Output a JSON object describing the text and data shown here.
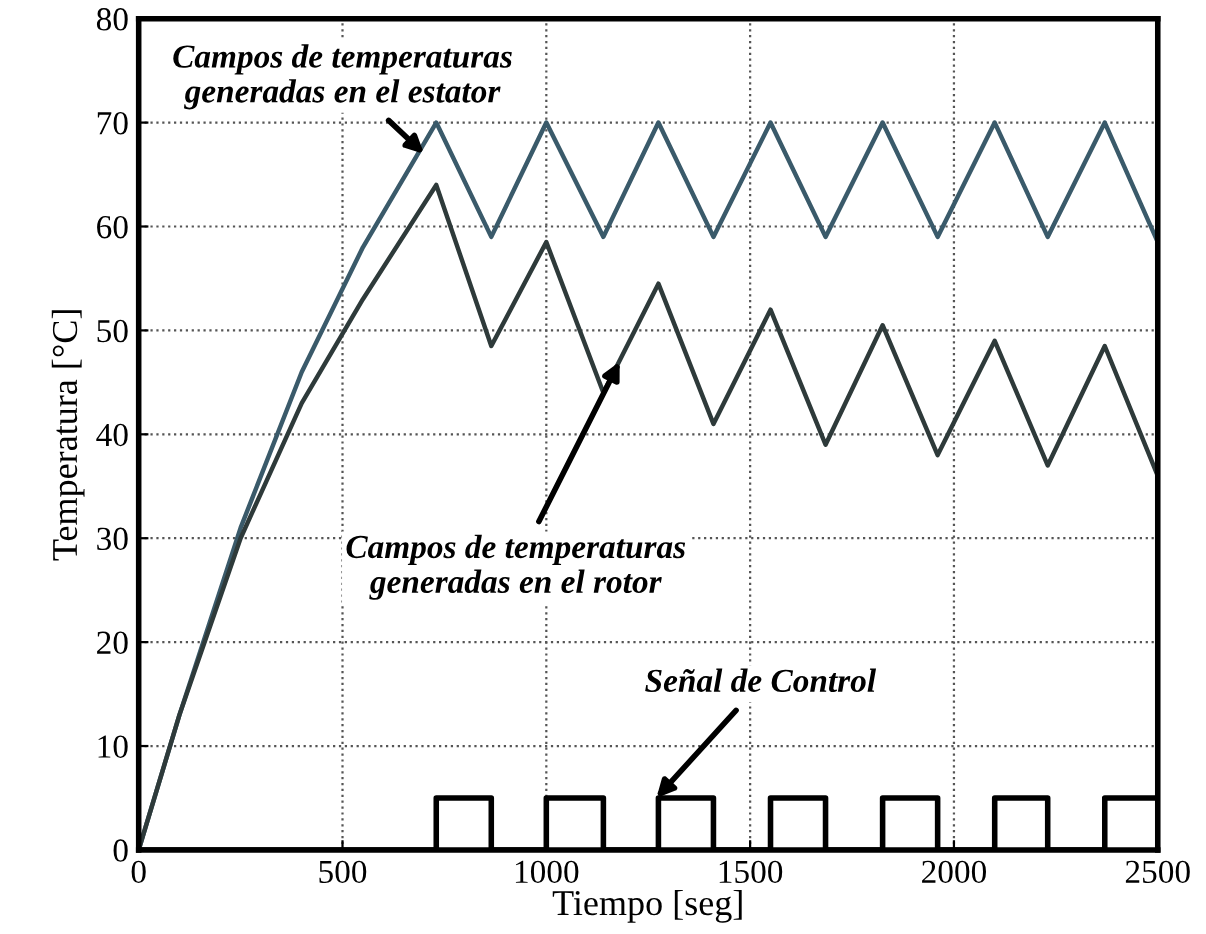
{
  "chart_data": {
    "type": "line",
    "xlabel": "Tiempo [seg]",
    "ylabel": "Temperatura [°C]",
    "xlim": [
      0,
      2500
    ],
    "ylim": [
      0,
      80
    ],
    "xticks": [
      0,
      500,
      1000,
      1500,
      2000,
      2500
    ],
    "yticks": [
      0,
      10,
      20,
      30,
      40,
      50,
      60,
      70,
      80
    ],
    "grid": true,
    "line_style": "solid",
    "series": [
      {
        "color": "#3a5a6a",
        "x": [
          0,
          100,
          250,
          400,
          550,
          730,
          865,
          1000,
          1140,
          1275,
          1410,
          1550,
          1685,
          1825,
          1960,
          2100,
          2230,
          2370,
          2500
        ],
        "values": [
          0,
          13,
          31,
          46,
          58,
          70,
          59,
          70,
          59,
          70,
          59,
          70,
          59,
          70,
          59,
          70,
          59,
          70,
          58.5
        ]
      },
      {
        "color": "#2e3a3a",
        "x": [
          0,
          100,
          250,
          400,
          550,
          730,
          865,
          1000,
          1140,
          1275,
          1410,
          1550,
          1685,
          1825,
          1960,
          2100,
          2230,
          2370,
          2500
        ],
        "values": [
          0,
          13,
          30,
          43,
          53,
          64,
          48.5,
          58.5,
          44,
          54.5,
          41,
          52,
          39,
          50.5,
          38,
          49,
          37,
          48.5,
          36
        ]
      },
      {
        "type": "step",
        "color": "#000000",
        "x": [
          0,
          730,
          865,
          1000,
          1140,
          1275,
          1410,
          1550,
          1685,
          1825,
          1960,
          2100,
          2230,
          2370,
          2500
        ],
        "values": [
          0,
          5,
          0,
          5,
          0,
          5,
          0,
          5,
          0,
          5,
          0,
          5,
          0,
          5,
          5
        ]
      }
    ],
    "annotations": [
      {
        "text": "Campos de temperaturas\ngeneradas en el estator",
        "x": 700,
        "y": 67
      },
      {
        "text": "Campos de temperaturas\ngeneradas en el rotor",
        "x": 1180,
        "y": 47
      },
      {
        "text": "Señal de Control",
        "x": 1270,
        "y": 5
      }
    ]
  }
}
